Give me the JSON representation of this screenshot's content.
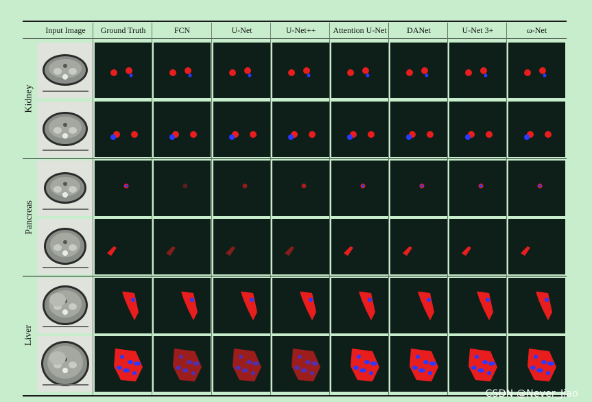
{
  "table": {
    "columns": [
      "Input Image",
      "Ground Truth",
      "FCN",
      "U-Net",
      "U-Net++",
      "Attention U-Net",
      "DANet",
      "U-Net 3+",
      "ω-Net"
    ],
    "groups": [
      "Kidney",
      "Pancreas",
      "Liver"
    ]
  },
  "legend_colors": {
    "foreground_red": "#e81d1d",
    "overlap_blue": "#2a3bff",
    "background": "#0e1f1a"
  },
  "watermark": "CSDN @Never_Jiao"
}
